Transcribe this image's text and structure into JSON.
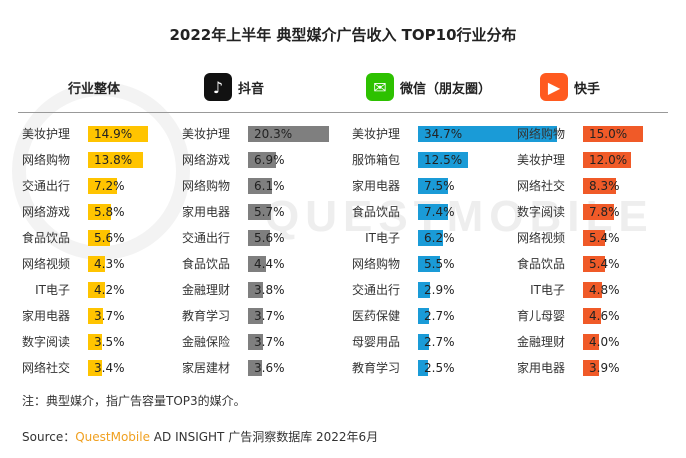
{
  "title": "2022年上半年 典型媒介广告收入 TOP10行业分布",
  "watermark": "QUESTMOBILE",
  "note": "注：典型媒介，指广告容量TOP3的媒介。",
  "source": {
    "prefix": "Source：",
    "brand": "QuestMobile",
    "rest": " AD INSIGHT 广告洞察数据库 2022年6月"
  },
  "columns": {
    "overall": {
      "title": "行业整体"
    },
    "douyin": {
      "title": "抖音",
      "icon": "douyin-logo-icon",
      "icon_glyph": "♪"
    },
    "wechat": {
      "title": "微信（朋友圈）",
      "icon": "wechat-logo-icon",
      "icon_glyph": "✉"
    },
    "kuaishou": {
      "title": "快手",
      "icon": "kuaishou-logo-icon",
      "icon_glyph": "▶"
    }
  },
  "colors": {
    "overall": "#ffc400",
    "douyin": "#7f7f7f",
    "wechat": "#1a9bd7",
    "kuaishou": "#f05a28"
  },
  "chart_data": [
    {
      "type": "bar",
      "title": "行业整体",
      "categories": [
        "美妆护理",
        "网络购物",
        "交通出行",
        "网络游戏",
        "食品饮品",
        "网络视频",
        "IT电子",
        "家用电器",
        "数字阅读",
        "网络社交"
      ],
      "values": [
        14.9,
        13.8,
        7.2,
        5.8,
        5.6,
        4.3,
        4.2,
        3.7,
        3.5,
        3.4
      ],
      "labels": [
        "14.9%",
        "13.8%",
        "7.2%",
        "5.8%",
        "5.6%",
        "4.3%",
        "4.2%",
        "3.7%",
        "3.5%",
        "3.4%"
      ]
    },
    {
      "type": "bar",
      "title": "抖音",
      "categories": [
        "美妆护理",
        "网络游戏",
        "网络购物",
        "家用电器",
        "交通出行",
        "食品饮品",
        "金融理财",
        "教育学习",
        "金融保险",
        "家居建材"
      ],
      "values": [
        20.3,
        6.9,
        6.1,
        5.7,
        5.6,
        4.4,
        3.8,
        3.7,
        3.7,
        3.6
      ],
      "labels": [
        "20.3%",
        "6.9%",
        "6.1%",
        "5.7%",
        "5.6%",
        "4.4%",
        "3.8%",
        "3.7%",
        "3.7%",
        "3.6%"
      ]
    },
    {
      "type": "bar",
      "title": "微信（朋友圈）",
      "categories": [
        "美妆护理",
        "服饰箱包",
        "家用电器",
        "食品饮品",
        "IT电子",
        "网络购物",
        "交通出行",
        "医药保健",
        "母婴用品",
        "教育学习"
      ],
      "values": [
        34.7,
        12.5,
        7.5,
        7.4,
        6.2,
        5.5,
        2.9,
        2.7,
        2.7,
        2.5
      ],
      "labels": [
        "34.7%",
        "12.5%",
        "7.5%",
        "7.4%",
        "6.2%",
        "5.5%",
        "2.9%",
        "2.7%",
        "2.7%",
        "2.5%"
      ]
    },
    {
      "type": "bar",
      "title": "快手",
      "categories": [
        "网络购物",
        "美妆护理",
        "网络社交",
        "数字阅读",
        "网络视频",
        "食品饮品",
        "IT电子",
        "育儿母婴",
        "金融理财",
        "家用电器"
      ],
      "values": [
        15.0,
        12.0,
        8.3,
        7.8,
        5.4,
        5.4,
        4.8,
        4.6,
        4.0,
        3.9
      ],
      "labels": [
        "15.0%",
        "12.0%",
        "8.3%",
        "7.8%",
        "5.4%",
        "5.4%",
        "4.8%",
        "4.6%",
        "4.0%",
        "3.9%"
      ]
    }
  ]
}
